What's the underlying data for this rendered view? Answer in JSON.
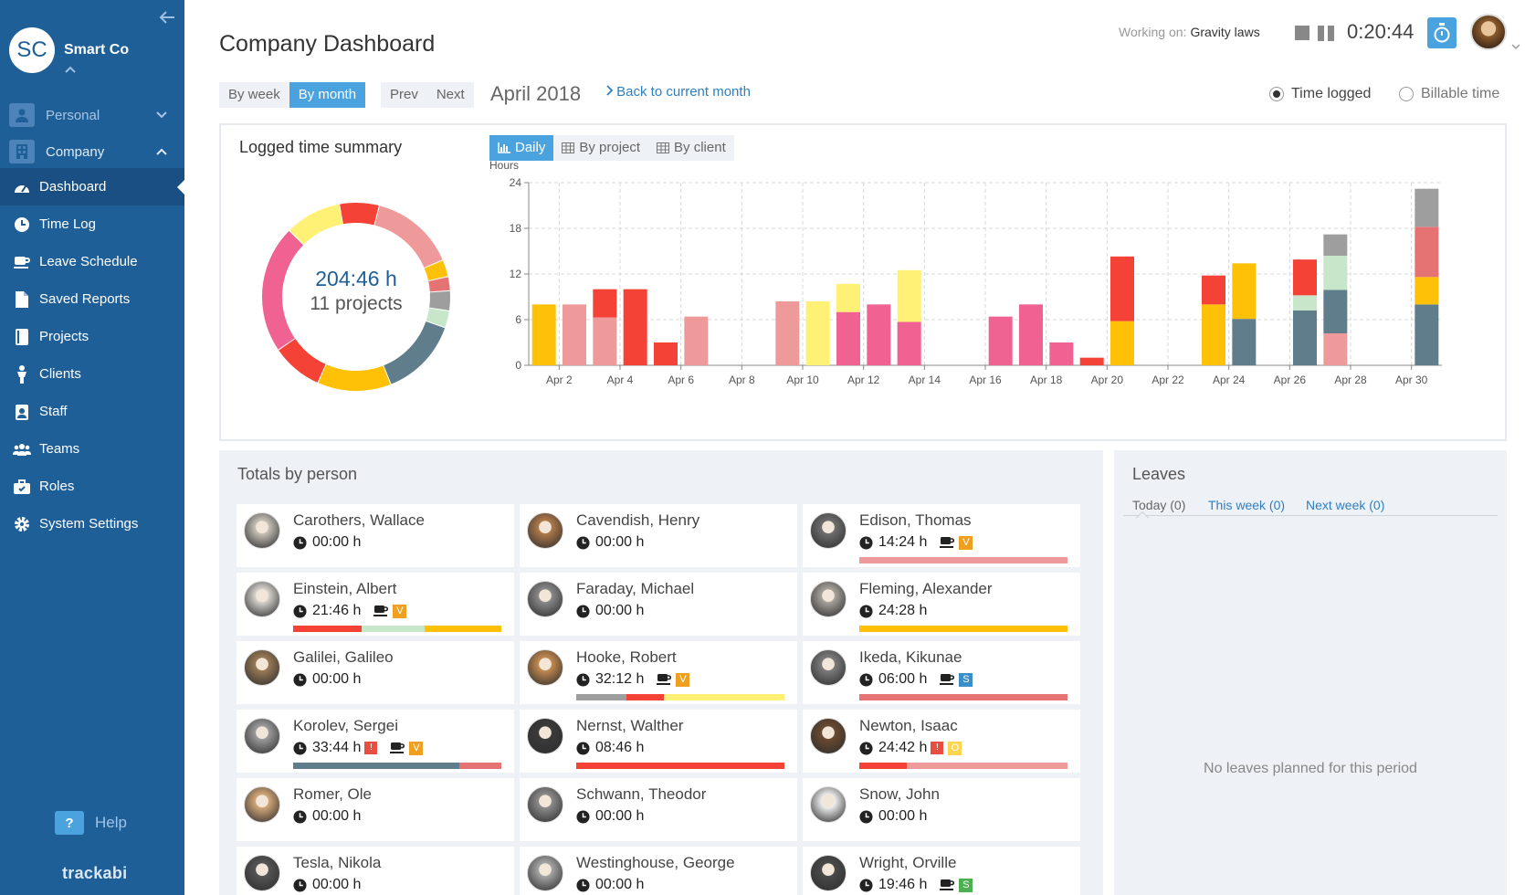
{
  "org": {
    "initials": "SC",
    "name": "Smart Co"
  },
  "sidebar": {
    "personal_label": "Personal",
    "company_label": "Company",
    "items": [
      {
        "label": "Dashboard",
        "icon": "dashboard-icon",
        "active": true
      },
      {
        "label": "Time Log",
        "icon": "clock-icon"
      },
      {
        "label": "Leave Schedule",
        "icon": "coffee-icon"
      },
      {
        "label": "Saved Reports",
        "icon": "file-icon"
      },
      {
        "label": "Projects",
        "icon": "book-icon"
      },
      {
        "label": "Clients",
        "icon": "person-icon"
      },
      {
        "label": "Staff",
        "icon": "id-card-icon"
      },
      {
        "label": "Teams",
        "icon": "users-icon"
      },
      {
        "label": "Roles",
        "icon": "briefcase-icon"
      },
      {
        "label": "System Settings",
        "icon": "gear-icon"
      }
    ],
    "help_label": "Help",
    "brand": "trackabi"
  },
  "header": {
    "title": "Company Dashboard",
    "working_label": "Working on:",
    "working_task": "Gravity laws",
    "timer": "0:20:44"
  },
  "toolbar": {
    "by_week": "By week",
    "by_month": "By month",
    "prev": "Prev",
    "next": "Next",
    "month": "April 2018",
    "back_link": "Back to current month",
    "radio_time_logged": "Time logged",
    "radio_billable": "Billable time"
  },
  "summary": {
    "title": "Logged time summary",
    "total": "204:46 h",
    "projects": "11 projects",
    "tabs": {
      "daily": "Daily",
      "by_project": "By project",
      "by_client": "By client"
    }
  },
  "colors": {
    "orange": "#ffc107",
    "salmon": "#ef9a9a",
    "red": "#f44336",
    "yellow": "#fff176",
    "pink": "#f06292",
    "slate": "#607d8b",
    "mint": "#c8e6c9",
    "gray": "#9e9e9e",
    "rose": "#e57373"
  },
  "donut_segments": [
    {
      "color": "#f44336",
      "value": 14
    },
    {
      "color": "#ef9a9a",
      "value": 30
    },
    {
      "color": "#ffc107",
      "value": 6
    },
    {
      "color": "#e57373",
      "value": 5
    },
    {
      "color": "#9e9e9e",
      "value": 7
    },
    {
      "color": "#c8e6c9",
      "value": 6
    },
    {
      "color": "#607d8b",
      "value": 28
    },
    {
      "color": "#ffc107",
      "value": 26
    },
    {
      "color": "#f44336",
      "value": 18
    },
    {
      "color": "#f06292",
      "value": 45
    },
    {
      "color": "#fff176",
      "value": 20
    }
  ],
  "chart_data": {
    "type": "bar",
    "stacked": true,
    "ylabel": "Hours",
    "ylim": [
      0,
      24
    ],
    "yticks": [
      0,
      6,
      12,
      18,
      24
    ],
    "xticks": [
      "Apr 2",
      "Apr 4",
      "Apr 6",
      "Apr 8",
      "Apr 10",
      "Apr 12",
      "Apr 14",
      "Apr 16",
      "Apr 18",
      "Apr 20",
      "Apr 22",
      "Apr 24",
      "Apr 26",
      "Apr 28",
      "Apr 30"
    ],
    "grid": true,
    "days": [
      {
        "day": 1,
        "stack": [
          [
            "#ffc107",
            8
          ]
        ]
      },
      {
        "day": 2,
        "stack": [
          [
            "#ef9a9a",
            8
          ]
        ]
      },
      {
        "day": 3,
        "stack": [
          [
            "#ef9a9a",
            6.3
          ],
          [
            "#f44336",
            3.7
          ]
        ]
      },
      {
        "day": 4,
        "stack": [
          [
            "#f44336",
            10
          ]
        ]
      },
      {
        "day": 5,
        "stack": [
          [
            "#f44336",
            3
          ]
        ]
      },
      {
        "day": 6,
        "stack": [
          [
            "#ef9a9a",
            6.4
          ]
        ]
      },
      {
        "day": 7,
        "stack": []
      },
      {
        "day": 8,
        "stack": []
      },
      {
        "day": 9,
        "stack": [
          [
            "#ef9a9a",
            8.4
          ]
        ]
      },
      {
        "day": 10,
        "stack": [
          [
            "#fff176",
            8.4
          ]
        ]
      },
      {
        "day": 11,
        "stack": [
          [
            "#f06292",
            7
          ],
          [
            "#fff176",
            3.7
          ]
        ]
      },
      {
        "day": 12,
        "stack": [
          [
            "#f06292",
            8
          ]
        ]
      },
      {
        "day": 13,
        "stack": [
          [
            "#f06292",
            5.7
          ],
          [
            "#fff176",
            6.8
          ]
        ]
      },
      {
        "day": 14,
        "stack": []
      },
      {
        "day": 15,
        "stack": []
      },
      {
        "day": 16,
        "stack": [
          [
            "#f06292",
            6.4
          ]
        ]
      },
      {
        "day": 17,
        "stack": [
          [
            "#f06292",
            8
          ]
        ]
      },
      {
        "day": 18,
        "stack": [
          [
            "#f06292",
            3
          ]
        ]
      },
      {
        "day": 19,
        "stack": [
          [
            "#f44336",
            1
          ]
        ]
      },
      {
        "day": 20,
        "stack": [
          [
            "#ffc107",
            5.8
          ],
          [
            "#f44336",
            8.5
          ]
        ]
      },
      {
        "day": 21,
        "stack": []
      },
      {
        "day": 22,
        "stack": []
      },
      {
        "day": 23,
        "stack": [
          [
            "#ffc107",
            8
          ],
          [
            "#f44336",
            3.8
          ]
        ]
      },
      {
        "day": 24,
        "stack": [
          [
            "#607d8b",
            6.1
          ],
          [
            "#ffc107",
            7.3
          ]
        ]
      },
      {
        "day": 25,
        "stack": []
      },
      {
        "day": 26,
        "stack": [
          [
            "#607d8b",
            7.2
          ],
          [
            "#c8e6c9",
            2
          ],
          [
            "#f44336",
            4.7
          ]
        ]
      },
      {
        "day": 27,
        "stack": [
          [
            "#ef9a9a",
            4.2
          ],
          [
            "#607d8b",
            5.7
          ],
          [
            "#c8e6c9",
            4.5
          ],
          [
            "#9e9e9e",
            2.8
          ]
        ]
      },
      {
        "day": 28,
        "stack": []
      },
      {
        "day": 29,
        "stack": []
      },
      {
        "day": 30,
        "stack": [
          [
            "#607d8b",
            8
          ],
          [
            "#ffc107",
            3.6
          ],
          [
            "#e57373",
            6.6
          ],
          [
            "#9e9e9e",
            5
          ]
        ]
      }
    ]
  },
  "totals": {
    "title": "Totals by person",
    "people": [
      {
        "name": "Carothers, Wallace",
        "hours": "00:00 h",
        "avatar": "#c8c2b8",
        "flag": false,
        "cup": false,
        "badge": null,
        "bar": []
      },
      {
        "name": "Cavendish, Henry",
        "hours": "00:00 h",
        "avatar": "#b07a4a",
        "flag": false,
        "cup": false,
        "badge": null,
        "bar": []
      },
      {
        "name": "Edison, Thomas",
        "hours": "14:24 h",
        "avatar": "#6e6e6e",
        "flag": false,
        "cup": true,
        "badge": {
          "text": "V",
          "color": "#f0a020"
        },
        "bar": [
          [
            "#ef9a9a",
            1
          ]
        ]
      },
      {
        "name": "Einstein, Albert",
        "hours": "21:46 h",
        "avatar": "#d8d4cf",
        "flag": false,
        "cup": true,
        "badge": {
          "text": "V",
          "color": "#f0a020"
        },
        "bar": [
          [
            "#f44336",
            0.33
          ],
          [
            "#c8e6c9",
            0.3
          ],
          [
            "#ffc107",
            0.37
          ]
        ]
      },
      {
        "name": "Faraday, Michael",
        "hours": "00:00 h",
        "avatar": "#8a8a8a",
        "flag": false,
        "cup": false,
        "badge": null,
        "bar": []
      },
      {
        "name": "Fleming, Alexander",
        "hours": "24:28 h",
        "avatar": "#a8a39c",
        "flag": false,
        "cup": false,
        "badge": null,
        "bar": [
          [
            "#ffc107",
            1
          ]
        ]
      },
      {
        "name": "Galilei, Galileo",
        "hours": "00:00 h",
        "avatar": "#9a7a55",
        "flag": false,
        "cup": false,
        "badge": null,
        "bar": []
      },
      {
        "name": "Hooke, Robert",
        "hours": "32:12 h",
        "avatar": "#c48a50",
        "flag": false,
        "cup": true,
        "badge": {
          "text": "V",
          "color": "#f0a020"
        },
        "bar": [
          [
            "#9e9e9e",
            0.24
          ],
          [
            "#f44336",
            0.18
          ],
          [
            "#fff176",
            0.58
          ]
        ]
      },
      {
        "name": "Ikeda, Kikunae",
        "hours": "06:00 h",
        "avatar": "#7c7c7c",
        "flag": false,
        "cup": true,
        "badge": {
          "text": "S",
          "color": "#3b8fc8"
        },
        "bar": [
          [
            "#e57373",
            1
          ]
        ]
      },
      {
        "name": "Korolev, Sergei",
        "hours": "33:44 h",
        "avatar": "#9c9c9c",
        "flag": true,
        "cup": true,
        "badge": {
          "text": "V",
          "color": "#f0a020"
        },
        "bar": [
          [
            "#607d8b",
            0.8
          ],
          [
            "#e57373",
            0.2
          ]
        ]
      },
      {
        "name": "Nernst, Walther",
        "hours": "08:46 h",
        "avatar": "#3a3a3a",
        "flag": false,
        "cup": false,
        "badge": null,
        "bar": [
          [
            "#f44336",
            1
          ]
        ]
      },
      {
        "name": "Newton, Isaac",
        "hours": "24:42 h",
        "avatar": "#6a4a30",
        "flag": true,
        "cup": false,
        "badge": {
          "text": "O",
          "color": "#ffd54f"
        },
        "bar": [
          [
            "#f44336",
            0.23
          ],
          [
            "#ef9a9a",
            0.77
          ]
        ]
      },
      {
        "name": "Romer, Ole",
        "hours": "00:00 h",
        "avatar": "#d4a878",
        "flag": false,
        "cup": false,
        "badge": null,
        "bar": []
      },
      {
        "name": "Schwann, Theodor",
        "hours": "00:00 h",
        "avatar": "#8c8c8c",
        "flag": false,
        "cup": false,
        "badge": null,
        "bar": []
      },
      {
        "name": "Snow, John",
        "hours": "00:00 h",
        "avatar": "#eeeeee",
        "flag": false,
        "cup": false,
        "badge": null,
        "bar": []
      },
      {
        "name": "Tesla, Nikola",
        "hours": "00:00 h",
        "avatar": "#555555",
        "flag": false,
        "cup": false,
        "badge": null,
        "bar": []
      },
      {
        "name": "Westinghouse, George",
        "hours": "00:00 h",
        "avatar": "#a6a6a6",
        "flag": false,
        "cup": false,
        "badge": null,
        "bar": []
      },
      {
        "name": "Wright, Orville",
        "hours": "19:46 h",
        "avatar": "#4a4a4a",
        "flag": false,
        "cup": true,
        "badge": {
          "text": "S",
          "color": "#4caf50"
        },
        "bar": []
      }
    ]
  },
  "leaves": {
    "title": "Leaves",
    "tab_today": "Today (0)",
    "tab_this_week": "This week (0)",
    "tab_next_week": "Next week (0)",
    "empty": "No leaves planned for this period"
  }
}
